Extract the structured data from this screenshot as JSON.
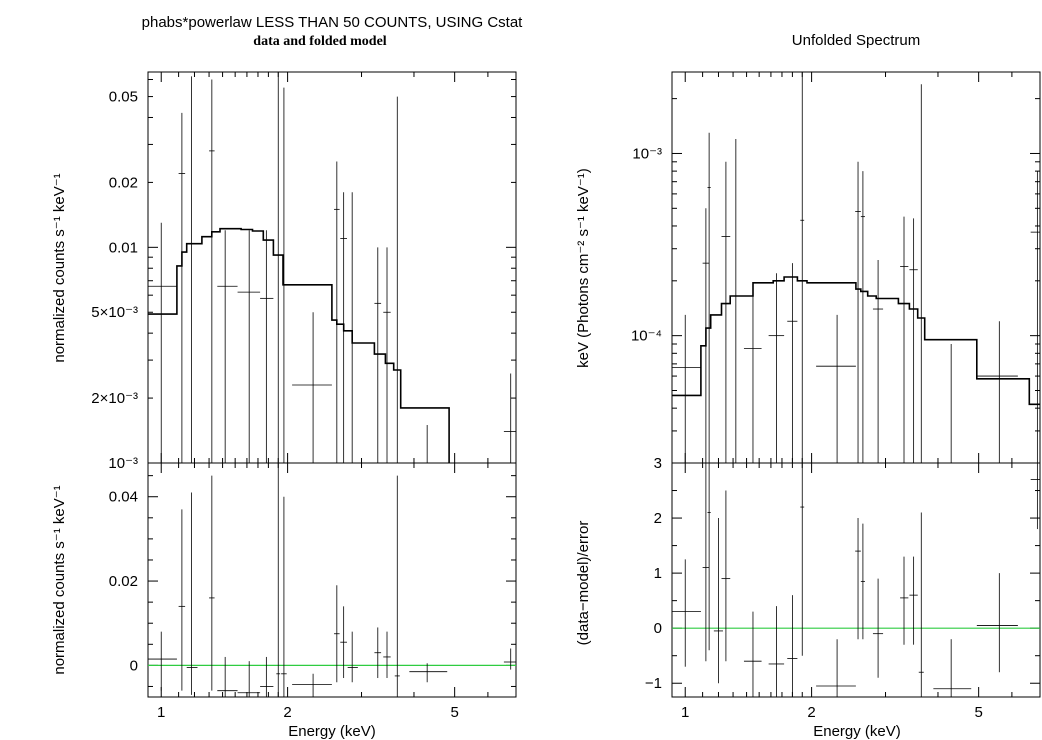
{
  "left": {
    "title_line1": "phabs*powerlaw LESS THAN 50 COUNTS, USING Cstat",
    "title_line2": "data and folded model",
    "top_ylabel": "normalized counts s⁻¹ keV⁻¹",
    "bottom_ylabel": "normalized counts s⁻¹ keV⁻¹",
    "xlabel": "Energy (keV)"
  },
  "right": {
    "title": "Unfolded Spectrum",
    "top_ylabel": "keV (Photons cm⁻² s⁻¹ keV⁻¹)",
    "bottom_ylabel": "(data−model)/error",
    "xlabel": "Energy (keV)"
  },
  "chart_data": [
    {
      "type": "scatter",
      "panel": "left-top",
      "xscale": "log",
      "yscale": "log",
      "xlim": [
        0.93,
        7.0
      ],
      "ylim": [
        0.001,
        0.065
      ],
      "xticks": [
        {
          "v": 1,
          "label": "1"
        },
        {
          "v": 2,
          "label": "2"
        },
        {
          "v": 5,
          "label": "5"
        }
      ],
      "yticks": [
        {
          "v": 0.001,
          "label": "10⁻³"
        },
        {
          "v": 0.002,
          "label": "2×10⁻³"
        },
        {
          "v": 0.005,
          "label": "5×10⁻³"
        },
        {
          "v": 0.01,
          "label": "0.01"
        },
        {
          "v": 0.02,
          "label": "0.02"
        },
        {
          "v": 0.05,
          "label": "0.05"
        }
      ],
      "points": [
        {
          "x": 1.0,
          "xlo": 0.93,
          "xhi": 1.09,
          "y": 0.0066,
          "ylo": 0.001,
          "yhi": 0.013
        },
        {
          "x": 1.12,
          "xlo": 1.1,
          "xhi": 1.14,
          "y": 0.022,
          "ylo": 0.001,
          "yhi": 0.042
        },
        {
          "x": 1.18,
          "xlo": 1.15,
          "xhi": 1.22,
          "y": 0.001,
          "ylo": 0.001,
          "yhi": 0.062
        },
        {
          "x": 1.32,
          "xlo": 1.3,
          "xhi": 1.34,
          "y": 0.028,
          "ylo": 0.001,
          "yhi": 0.06
        },
        {
          "x": 1.42,
          "xlo": 1.36,
          "xhi": 1.52,
          "y": 0.0066,
          "ylo": 0.001,
          "yhi": 0.012
        },
        {
          "x": 1.62,
          "xlo": 1.52,
          "xhi": 1.72,
          "y": 0.0062,
          "ylo": 0.001,
          "yhi": 0.012
        },
        {
          "x": 1.78,
          "xlo": 1.72,
          "xhi": 1.85,
          "y": 0.0058,
          "ylo": 0.001,
          "yhi": 0.012
        },
        {
          "x": 1.9,
          "xlo": 1.88,
          "xhi": 1.92,
          "y": 0.001,
          "ylo": 0.001,
          "yhi": 0.065
        },
        {
          "x": 1.96,
          "xlo": 1.93,
          "xhi": 1.99,
          "y": 0.001,
          "ylo": 0.001,
          "yhi": 0.055
        },
        {
          "x": 2.3,
          "xlo": 2.05,
          "xhi": 2.55,
          "y": 0.0023,
          "ylo": 0.001,
          "yhi": 0.005
        },
        {
          "x": 2.62,
          "xlo": 2.58,
          "xhi": 2.66,
          "y": 0.015,
          "ylo": 0.001,
          "yhi": 0.025
        },
        {
          "x": 2.72,
          "xlo": 2.67,
          "xhi": 2.77,
          "y": 0.011,
          "ylo": 0.001,
          "yhi": 0.018
        },
        {
          "x": 2.85,
          "xlo": 2.78,
          "xhi": 2.94,
          "y": 0.001,
          "ylo": 0.001,
          "yhi": 0.018
        },
        {
          "x": 3.28,
          "xlo": 3.22,
          "xhi": 3.34,
          "y": 0.0055,
          "ylo": 0.001,
          "yhi": 0.01
        },
        {
          "x": 3.45,
          "xlo": 3.38,
          "xhi": 3.52,
          "y": 0.005,
          "ylo": 0.001,
          "yhi": 0.01
        },
        {
          "x": 3.65,
          "xlo": 3.6,
          "xhi": 3.7,
          "y": 0.001,
          "ylo": 0.001,
          "yhi": 0.05
        },
        {
          "x": 4.3,
          "xlo": 3.9,
          "xhi": 4.8,
          "y": 0.001,
          "ylo": 0.001,
          "yhi": 0.0015
        },
        {
          "x": 6.8,
          "xlo": 6.55,
          "xhi": 7.0,
          "y": 0.0014,
          "ylo": 0.001,
          "yhi": 0.0026
        }
      ],
      "model_steps": [
        {
          "xlo": 0.93,
          "xhi": 1.09,
          "y": 0.0049
        },
        {
          "xlo": 1.09,
          "xhi": 1.12,
          "y": 0.0082
        },
        {
          "xlo": 1.12,
          "xhi": 1.15,
          "y": 0.0095
        },
        {
          "xlo": 1.15,
          "xhi": 1.25,
          "y": 0.0104
        },
        {
          "xlo": 1.25,
          "xhi": 1.32,
          "y": 0.0112
        },
        {
          "xlo": 1.32,
          "xhi": 1.38,
          "y": 0.0118
        },
        {
          "xlo": 1.38,
          "xhi": 1.55,
          "y": 0.0122
        },
        {
          "xlo": 1.55,
          "xhi": 1.65,
          "y": 0.0121
        },
        {
          "xlo": 1.65,
          "xhi": 1.75,
          "y": 0.0119
        },
        {
          "xlo": 1.75,
          "xhi": 1.85,
          "y": 0.0108
        },
        {
          "xlo": 1.85,
          "xhi": 1.95,
          "y": 0.0092
        },
        {
          "xlo": 1.95,
          "xhi": 2.55,
          "y": 0.0067
        },
        {
          "xlo": 2.55,
          "xhi": 2.62,
          "y": 0.0046
        },
        {
          "xlo": 2.62,
          "xhi": 2.72,
          "y": 0.0044
        },
        {
          "xlo": 2.72,
          "xhi": 2.85,
          "y": 0.0041
        },
        {
          "xlo": 2.85,
          "xhi": 3.22,
          "y": 0.0036
        },
        {
          "xlo": 3.22,
          "xhi": 3.42,
          "y": 0.0032
        },
        {
          "xlo": 3.42,
          "xhi": 3.58,
          "y": 0.0029
        },
        {
          "xlo": 3.58,
          "xhi": 3.72,
          "y": 0.0027
        },
        {
          "xlo": 3.72,
          "xhi": 4.85,
          "y": 0.0018
        }
      ]
    },
    {
      "type": "scatter",
      "panel": "left-bottom",
      "xscale": "log",
      "yscale": "linear",
      "xlim": [
        0.93,
        7.0
      ],
      "ylim": [
        -0.0075,
        0.048
      ],
      "xticks": [
        {
          "v": 1,
          "label": "1"
        },
        {
          "v": 2,
          "label": "2"
        },
        {
          "v": 5,
          "label": "5"
        }
      ],
      "yticks": [
        {
          "v": 0,
          "label": "0"
        },
        {
          "v": 0.02,
          "label": "0.02"
        },
        {
          "v": 0.04,
          "label": "0.04"
        }
      ],
      "zero_line": 0,
      "points": [
        {
          "x": 1.0,
          "xlo": 0.93,
          "xhi": 1.09,
          "y": 0.0015,
          "ylo": -0.006,
          "yhi": 0.008
        },
        {
          "x": 1.12,
          "xlo": 1.1,
          "xhi": 1.14,
          "y": 0.014,
          "ylo": -0.006,
          "yhi": 0.037
        },
        {
          "x": 1.18,
          "xlo": 1.15,
          "xhi": 1.22,
          "y": -0.0005,
          "ylo": -0.007,
          "yhi": 0.041
        },
        {
          "x": 1.32,
          "xlo": 1.3,
          "xhi": 1.34,
          "y": 0.016,
          "ylo": -0.006,
          "yhi": 0.045
        },
        {
          "x": 1.42,
          "xlo": 1.36,
          "xhi": 1.52,
          "y": -0.006,
          "ylo": -0.0075,
          "yhi": 0.002
        },
        {
          "x": 1.62,
          "xlo": 1.52,
          "xhi": 1.72,
          "y": -0.0065,
          "ylo": -0.0075,
          "yhi": 0.001
        },
        {
          "x": 1.78,
          "xlo": 1.72,
          "xhi": 1.85,
          "y": -0.005,
          "ylo": -0.0075,
          "yhi": 0.002
        },
        {
          "x": 1.9,
          "xlo": 1.88,
          "xhi": 1.92,
          "y": -0.002,
          "ylo": -0.0075,
          "yhi": 0.048
        },
        {
          "x": 1.96,
          "xlo": 1.93,
          "xhi": 1.99,
          "y": -0.002,
          "ylo": -0.0075,
          "yhi": 0.04
        },
        {
          "x": 2.3,
          "xlo": 2.05,
          "xhi": 2.55,
          "y": -0.0045,
          "ylo": -0.0075,
          "yhi": -0.002
        },
        {
          "x": 2.62,
          "xlo": 2.58,
          "xhi": 2.66,
          "y": 0.0075,
          "ylo": -0.004,
          "yhi": 0.019
        },
        {
          "x": 2.72,
          "xlo": 2.67,
          "xhi": 2.77,
          "y": 0.0055,
          "ylo": -0.003,
          "yhi": 0.014
        },
        {
          "x": 2.85,
          "xlo": 2.78,
          "xhi": 2.94,
          "y": -0.0005,
          "ylo": -0.004,
          "yhi": 0.008
        },
        {
          "x": 3.28,
          "xlo": 3.22,
          "xhi": 3.34,
          "y": 0.003,
          "ylo": -0.003,
          "yhi": 0.009
        },
        {
          "x": 3.45,
          "xlo": 3.38,
          "xhi": 3.52,
          "y": 0.002,
          "ylo": -0.003,
          "yhi": 0.008
        },
        {
          "x": 3.65,
          "xlo": 3.6,
          "xhi": 3.7,
          "y": -0.0025,
          "ylo": -0.0075,
          "yhi": 0.045
        },
        {
          "x": 4.3,
          "xlo": 3.9,
          "xhi": 4.8,
          "y": -0.0015,
          "ylo": -0.004,
          "yhi": 0.0005
        },
        {
          "x": 6.8,
          "xlo": 6.55,
          "xhi": 7.0,
          "y": 0.0008,
          "ylo": -0.001,
          "yhi": 0.004
        }
      ]
    },
    {
      "type": "scatter",
      "panel": "right-top",
      "xscale": "log",
      "yscale": "log",
      "xlim": [
        0.93,
        7.0
      ],
      "ylim": [
        2e-05,
        0.0028
      ],
      "xticks": [
        {
          "v": 1,
          "label": "1"
        },
        {
          "v": 2,
          "label": "2"
        },
        {
          "v": 5,
          "label": "5"
        }
      ],
      "yticks": [
        {
          "v": 0.0001,
          "label": "10⁻⁴"
        },
        {
          "v": 0.001,
          "label": "10⁻³"
        }
      ],
      "points": [
        {
          "x": 1.0,
          "xlo": 0.93,
          "xhi": 1.09,
          "y": 6.7e-05,
          "ylo": 2e-05,
          "yhi": 0.00013
        },
        {
          "x": 1.12,
          "xlo": 1.1,
          "xhi": 1.14,
          "y": 0.00025,
          "ylo": 2e-05,
          "yhi": 0.0005
        },
        {
          "x": 1.14,
          "xlo": 1.13,
          "xhi": 1.15,
          "y": 0.00065,
          "ylo": 2e-05,
          "yhi": 0.0013
        },
        {
          "x": 1.25,
          "xlo": 1.22,
          "xhi": 1.28,
          "y": 0.00035,
          "ylo": 2e-05,
          "yhi": 0.0009
        },
        {
          "x": 1.32,
          "xlo": 1.3,
          "xhi": 1.34,
          "y": 2e-05,
          "ylo": 2e-05,
          "yhi": 0.0012
        },
        {
          "x": 1.45,
          "xlo": 1.38,
          "xhi": 1.52,
          "y": 8.5e-05,
          "ylo": 2e-05,
          "yhi": 0.00017
        },
        {
          "x": 1.65,
          "xlo": 1.58,
          "xhi": 1.72,
          "y": 0.0001,
          "ylo": 2e-05,
          "yhi": 0.00022
        },
        {
          "x": 1.8,
          "xlo": 1.75,
          "xhi": 1.85,
          "y": 0.00012,
          "ylo": 2e-05,
          "yhi": 0.00025
        },
        {
          "x": 1.9,
          "xlo": 1.88,
          "xhi": 1.92,
          "y": 0.00043,
          "ylo": 2e-05,
          "yhi": 0.0028
        },
        {
          "x": 2.3,
          "xlo": 2.05,
          "xhi": 2.55,
          "y": 6.8e-05,
          "ylo": 2e-05,
          "yhi": 0.00013
        },
        {
          "x": 2.58,
          "xlo": 2.54,
          "xhi": 2.62,
          "y": 0.00048,
          "ylo": 2e-05,
          "yhi": 0.0009
        },
        {
          "x": 2.65,
          "xlo": 2.62,
          "xhi": 2.68,
          "y": 0.00045,
          "ylo": 2e-05,
          "yhi": 0.0008
        },
        {
          "x": 2.88,
          "xlo": 2.8,
          "xhi": 2.96,
          "y": 0.00014,
          "ylo": 2e-05,
          "yhi": 0.00026
        },
        {
          "x": 3.32,
          "xlo": 3.25,
          "xhi": 3.4,
          "y": 0.00024,
          "ylo": 2e-05,
          "yhi": 0.00045
        },
        {
          "x": 3.5,
          "xlo": 3.42,
          "xhi": 3.58,
          "y": 0.00023,
          "ylo": 2e-05,
          "yhi": 0.00044
        },
        {
          "x": 3.65,
          "xlo": 3.6,
          "xhi": 3.7,
          "y": 2e-05,
          "ylo": 2e-05,
          "yhi": 0.0024
        },
        {
          "x": 4.3,
          "xlo": 3.9,
          "xhi": 4.8,
          "y": 2e-05,
          "ylo": 2e-05,
          "yhi": 9e-05
        },
        {
          "x": 5.6,
          "xlo": 4.95,
          "xhi": 6.2,
          "y": 6e-05,
          "ylo": 2e-05,
          "yhi": 0.00012
        },
        {
          "x": 6.9,
          "xlo": 6.65,
          "xhi": 7.0,
          "y": 0.00037,
          "ylo": 2e-05,
          "yhi": 0.0008
        }
      ],
      "model_steps": [
        {
          "xlo": 0.93,
          "xhi": 1.09,
          "y": 4.7e-05
        },
        {
          "xlo": 1.09,
          "xhi": 1.12,
          "y": 8.8e-05
        },
        {
          "xlo": 1.12,
          "xhi": 1.15,
          "y": 0.00011
        },
        {
          "xlo": 1.15,
          "xhi": 1.22,
          "y": 0.00013
        },
        {
          "xlo": 1.22,
          "xhi": 1.28,
          "y": 0.00015
        },
        {
          "xlo": 1.28,
          "xhi": 1.45,
          "y": 0.000165
        },
        {
          "xlo": 1.45,
          "xhi": 1.62,
          "y": 0.000195
        },
        {
          "xlo": 1.62,
          "xhi": 1.72,
          "y": 0.0002
        },
        {
          "xlo": 1.72,
          "xhi": 1.85,
          "y": 0.00021
        },
        {
          "xlo": 1.85,
          "xhi": 1.95,
          "y": 0.0002
        },
        {
          "xlo": 1.95,
          "xhi": 2.55,
          "y": 0.000195
        },
        {
          "xlo": 2.55,
          "xhi": 2.62,
          "y": 0.00018
        },
        {
          "xlo": 2.62,
          "xhi": 2.72,
          "y": 0.000175
        },
        {
          "xlo": 2.72,
          "xhi": 2.85,
          "y": 0.000165
        },
        {
          "xlo": 2.85,
          "xhi": 3.22,
          "y": 0.00016
        },
        {
          "xlo": 3.22,
          "xhi": 3.42,
          "y": 0.00015
        },
        {
          "xlo": 3.42,
          "xhi": 3.58,
          "y": 0.00014
        },
        {
          "xlo": 3.58,
          "xhi": 3.72,
          "y": 0.000125
        },
        {
          "xlo": 3.72,
          "xhi": 4.95,
          "y": 9.5e-05
        },
        {
          "xlo": 4.95,
          "xhi": 6.6,
          "y": 5.8e-05
        },
        {
          "xlo": 6.6,
          "xhi": 7.0,
          "y": 4.2e-05
        }
      ]
    },
    {
      "type": "scatter",
      "panel": "right-bottom",
      "xscale": "log",
      "yscale": "linear",
      "xlim": [
        0.93,
        7.0
      ],
      "ylim": [
        -1.25,
        3.0
      ],
      "xticks": [
        {
          "v": 1,
          "label": "1"
        },
        {
          "v": 2,
          "label": "2"
        },
        {
          "v": 5,
          "label": "5"
        }
      ],
      "yticks": [
        {
          "v": -1,
          "label": "−1"
        },
        {
          "v": 0,
          "label": "0"
        },
        {
          "v": 1,
          "label": "1"
        },
        {
          "v": 2,
          "label": "2"
        },
        {
          "v": 3,
          "label": "3"
        }
      ],
      "zero_line": 0,
      "points": [
        {
          "x": 1.0,
          "xlo": 0.93,
          "xhi": 1.09,
          "y": 0.3,
          "ylo": -0.7,
          "yhi": 1.25
        },
        {
          "x": 1.12,
          "xlo": 1.1,
          "xhi": 1.14,
          "y": 1.1,
          "ylo": -0.6,
          "yhi": 3.0
        },
        {
          "x": 1.14,
          "xlo": 1.13,
          "xhi": 1.15,
          "y": 2.1,
          "ylo": -0.4,
          "yhi": 3.0
        },
        {
          "x": 1.2,
          "xlo": 1.17,
          "xhi": 1.23,
          "y": -0.05,
          "ylo": -1.0,
          "yhi": 2.0
        },
        {
          "x": 1.25,
          "xlo": 1.22,
          "xhi": 1.28,
          "y": 0.9,
          "ylo": -0.6,
          "yhi": 2.5
        },
        {
          "x": 1.45,
          "xlo": 1.38,
          "xhi": 1.52,
          "y": -0.6,
          "ylo": -1.25,
          "yhi": 0.3
        },
        {
          "x": 1.65,
          "xlo": 1.58,
          "xhi": 1.72,
          "y": -0.65,
          "ylo": -1.25,
          "yhi": 0.4
        },
        {
          "x": 1.8,
          "xlo": 1.75,
          "xhi": 1.85,
          "y": -0.55,
          "ylo": -1.25,
          "yhi": 0.6
        },
        {
          "x": 1.9,
          "xlo": 1.88,
          "xhi": 1.92,
          "y": 2.2,
          "ylo": -0.5,
          "yhi": 3.0
        },
        {
          "x": 2.3,
          "xlo": 2.05,
          "xhi": 2.55,
          "y": -1.05,
          "ylo": -1.25,
          "yhi": -0.2
        },
        {
          "x": 2.58,
          "xlo": 2.54,
          "xhi": 2.62,
          "y": 1.4,
          "ylo": -0.2,
          "yhi": 2.0
        },
        {
          "x": 2.65,
          "xlo": 2.62,
          "xhi": 2.68,
          "y": 0.85,
          "ylo": -0.2,
          "yhi": 1.9
        },
        {
          "x": 2.88,
          "xlo": 2.8,
          "xhi": 2.96,
          "y": -0.1,
          "ylo": -0.9,
          "yhi": 0.9
        },
        {
          "x": 3.32,
          "xlo": 3.25,
          "xhi": 3.4,
          "y": 0.55,
          "ylo": -0.3,
          "yhi": 1.3
        },
        {
          "x": 3.5,
          "xlo": 3.42,
          "xhi": 3.58,
          "y": 0.6,
          "ylo": -0.3,
          "yhi": 1.3
        },
        {
          "x": 3.65,
          "xlo": 3.6,
          "xhi": 3.7,
          "y": -0.8,
          "ylo": -1.25,
          "yhi": 2.1
        },
        {
          "x": 4.3,
          "xlo": 3.9,
          "xhi": 4.8,
          "y": -1.1,
          "ylo": -1.25,
          "yhi": -0.2
        },
        {
          "x": 5.6,
          "xlo": 4.95,
          "xhi": 6.2,
          "y": 0.05,
          "ylo": -0.8,
          "yhi": 1.0
        },
        {
          "x": 6.9,
          "xlo": 6.65,
          "xhi": 7.0,
          "y": 2.7,
          "ylo": 1.8,
          "yhi": 3.0
        }
      ]
    }
  ]
}
